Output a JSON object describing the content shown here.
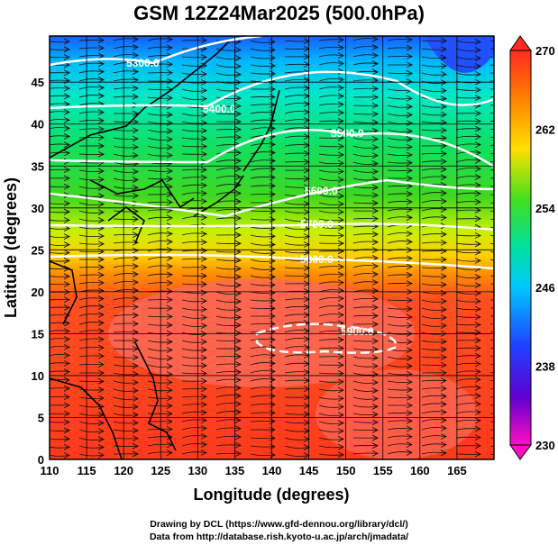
{
  "title": "GSM 12Z24Mar2025 (500.0hPa)",
  "xaxis": {
    "label": "Longitude (degrees)",
    "ticks": [
      "110",
      "115",
      "120",
      "125",
      "130",
      "135",
      "140",
      "145",
      "150",
      "155",
      "160",
      "165"
    ]
  },
  "yaxis": {
    "label": "Latitude  (degrees)",
    "ticks": [
      "0",
      "5",
      "10",
      "15",
      "20",
      "25",
      "30",
      "35",
      "40",
      "45"
    ]
  },
  "colorbar": {
    "ticks": [
      "270",
      "262",
      "254",
      "246",
      "238",
      "230"
    ]
  },
  "contour_labels": [
    "5300.0",
    "5400.0",
    "5500.0",
    "5600.0",
    "5700.0",
    "5800.0",
    "5900.0"
  ],
  "credits": {
    "line1": "Drawing by DCL (https://www.gfd-dennou.org/library/dcl/)",
    "line2": "Data from http://database.rish.kyoto-u.ac.jp/arch/jmadata/"
  }
}
